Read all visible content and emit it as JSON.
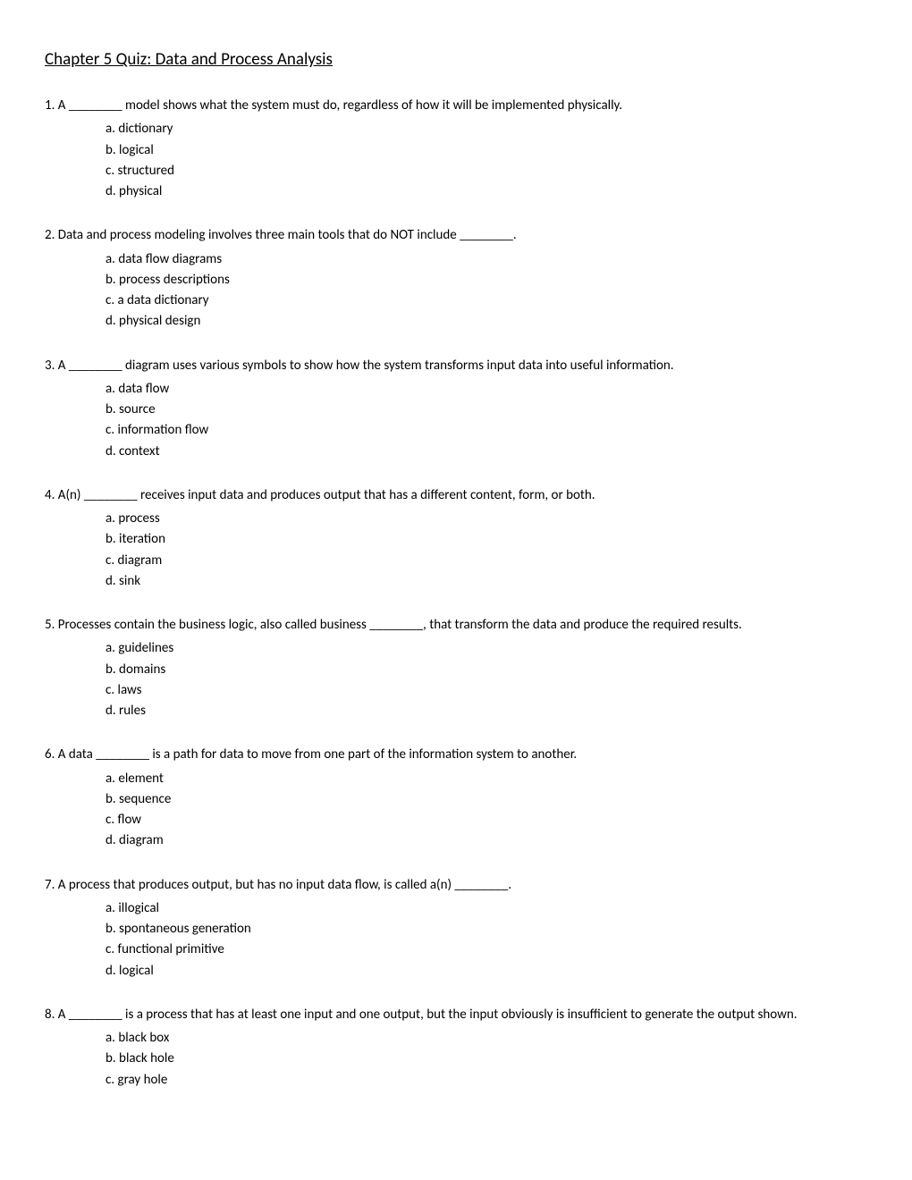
{
  "title": "Chapter 5 Quiz:  Data and Process Analysis",
  "questions": [
    {
      "num": "1.",
      "text": "A ________ model shows what the system must do, regardless of how it will be implemented physically.",
      "options": [
        "a. dictionary",
        "b. logical",
        "c. structured",
        "d. physical"
      ]
    },
    {
      "num": "2.",
      "text": "Data and process modeling involves three main tools that do NOT include ________.",
      "options": [
        "a. data flow diagrams",
        "b. process descriptions",
        "c. a data dictionary",
        "d. physical design"
      ]
    },
    {
      "num": "3.",
      "text": "A ________ diagram uses various symbols to show how the system transforms input data into useful information.",
      "options": [
        "a. data flow",
        "b. source",
        "c. information flow",
        "d. context"
      ]
    },
    {
      "num": "4.",
      "text": "A(n) ________ receives input data and produces output that has a different content, form, or both.",
      "options": [
        "a. process",
        "b. iteration",
        "c. diagram",
        "d. sink"
      ]
    },
    {
      "num": "5.",
      "text": "Processes contain the business logic, also called business ________, that transform the data and produce the required results.",
      "options": [
        "a. guidelines",
        "b. domains",
        "c. laws",
        "d. rules"
      ]
    },
    {
      "num": "6.",
      "text": "A data ________ is a path for data to move from one part of the information system to another.",
      "options": [
        "a. element",
        "b. sequence",
        "c. flow",
        "d. diagram"
      ]
    },
    {
      "num": "7.",
      "text": "A process that produces output, but has no input data flow, is called a(n) ________.",
      "options": [
        "a. illogical",
        "b. spontaneous generation",
        "c. functional primitive",
        "d. logical"
      ]
    },
    {
      "num": "8.",
      "text": "A ________ is a process that has at least one input and one output, but the input obviously is insufficient to generate the output shown.",
      "options": [
        "a. black box",
        "b. black hole",
        "c. gray hole"
      ]
    }
  ]
}
